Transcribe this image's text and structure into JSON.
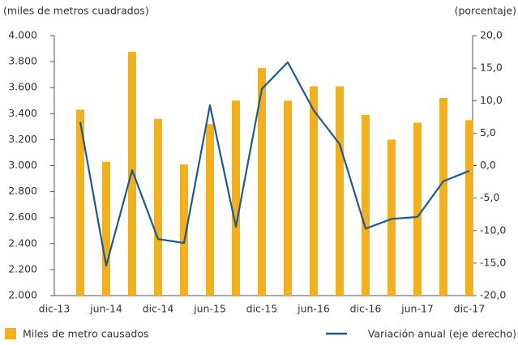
{
  "chart_data": {
    "type": "bar_line",
    "y_label": "(miles de metros cuadrados)",
    "y2_label": "(porcentaje)",
    "categories": [
      "dic-13",
      null,
      "jun-14",
      null,
      "dic-14",
      null,
      "jun-15",
      null,
      "dic-15",
      null,
      "jun-16",
      null,
      "dic-16",
      null,
      "jun-17",
      null,
      "dic-17"
    ],
    "series": [
      {
        "name": "Miles de metro causados",
        "type": "bar",
        "color": "#f2b01e",
        "values": [
          null,
          3430,
          3030,
          3875,
          3360,
          3010,
          3320,
          3500,
          3750,
          3500,
          3610,
          3610,
          3390,
          3200,
          3330,
          3520,
          3350
        ]
      },
      {
        "name": "Variación anual (eje derecho)",
        "type": "line",
        "axis": "y2",
        "color": "#1f5a8c",
        "values": [
          null,
          6.7,
          -15.4,
          -0.7,
          -11.3,
          -11.9,
          9.3,
          -9.4,
          11.8,
          15.9,
          8.5,
          3.3,
          -9.7,
          -8.2,
          -7.9,
          -2.4,
          -0.8
        ]
      }
    ],
    "ylim": [
      2000,
      4000
    ],
    "yticks": [
      {
        "value": 2000,
        "label": "2.000"
      },
      {
        "value": 2200,
        "label": "2.200"
      },
      {
        "value": 2400,
        "label": "2.400"
      },
      {
        "value": 2600,
        "label": "2.600"
      },
      {
        "value": 2800,
        "label": "2.800"
      },
      {
        "value": 3000,
        "label": "3.000"
      },
      {
        "value": 3200,
        "label": "3.200"
      },
      {
        "value": 3400,
        "label": "3.400"
      },
      {
        "value": 3600,
        "label": "3.600"
      },
      {
        "value": 3800,
        "label": "3.800"
      },
      {
        "value": 4000,
        "label": "4.000"
      }
    ],
    "y2lim": [
      -20,
      20
    ],
    "y2ticks": [
      {
        "value": -20,
        "label": "-20,0"
      },
      {
        "value": -15,
        "label": "-15,0"
      },
      {
        "value": -10,
        "label": "-10,0"
      },
      {
        "value": -5,
        "label": "-5,0"
      },
      {
        "value": 0,
        "label": "0,0"
      },
      {
        "value": 5,
        "label": "5,0"
      },
      {
        "value": 10,
        "label": "10,0"
      },
      {
        "value": 15,
        "label": "15,0"
      },
      {
        "value": 20,
        "label": "20,0"
      }
    ],
    "grid": false
  }
}
